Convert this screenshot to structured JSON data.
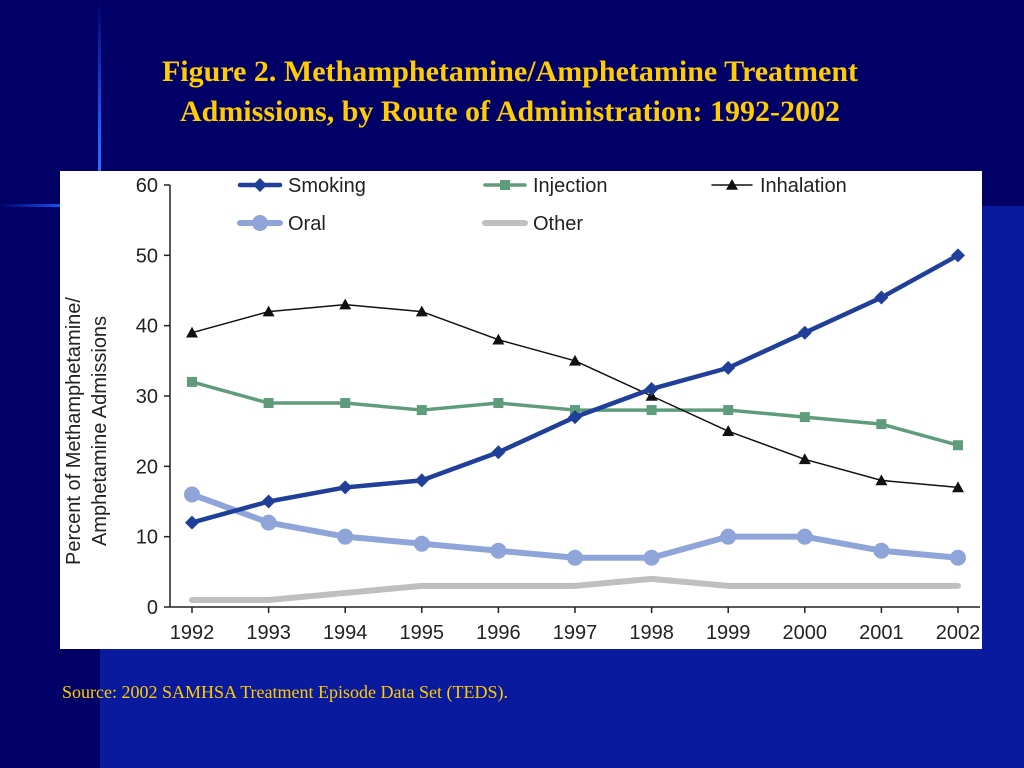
{
  "title_line1": "Figure 2. Methamphetamine/Amphetamine Treatment",
  "title_line2": "Admissions, by Route of Administration: 1992-2002",
  "source": "Source: 2002 SAMHSA Treatment Episode Data Set (TEDS).",
  "colors": {
    "background": "#000066",
    "title": "#ffcc00",
    "smoking": "#1f3f99",
    "injection": "#5e9c7c",
    "inhalation": "#111111",
    "oral": "#8fa4d8",
    "other": "#bfbfbf"
  },
  "chart_data": {
    "type": "line",
    "x": [
      "1992",
      "1993",
      "1994",
      "1995",
      "1996",
      "1997",
      "1998",
      "1999",
      "2000",
      "2001",
      "2002"
    ],
    "ylabel_line1": "Percent of Methamphetamine/",
    "ylabel_line2": "Amphetamine Admissions",
    "ylim": [
      0,
      60
    ],
    "yticks": [
      "0",
      "10",
      "20",
      "30",
      "40",
      "50",
      "60"
    ],
    "grid": false,
    "legend_position": "top",
    "series": [
      {
        "name": "Smoking",
        "key": "smoking",
        "marker": "diamond",
        "values": [
          12,
          15,
          17,
          18,
          22,
          27,
          31,
          34,
          39,
          44,
          50
        ]
      },
      {
        "name": "Injection",
        "key": "injection",
        "marker": "square",
        "values": [
          32,
          29,
          29,
          28,
          29,
          28,
          28,
          28,
          27,
          26,
          23
        ]
      },
      {
        "name": "Inhalation",
        "key": "inhalation",
        "marker": "triangle",
        "values": [
          39,
          42,
          43,
          42,
          38,
          35,
          30,
          25,
          21,
          18,
          17
        ]
      },
      {
        "name": "Oral",
        "key": "oral",
        "marker": "circle",
        "values": [
          16,
          12,
          10,
          9,
          8,
          7,
          7,
          10,
          10,
          8,
          7
        ]
      },
      {
        "name": "Other",
        "key": "other",
        "marker": "none",
        "values": [
          1,
          1,
          2,
          3,
          3,
          3,
          4,
          3,
          3,
          3,
          3
        ]
      }
    ]
  }
}
